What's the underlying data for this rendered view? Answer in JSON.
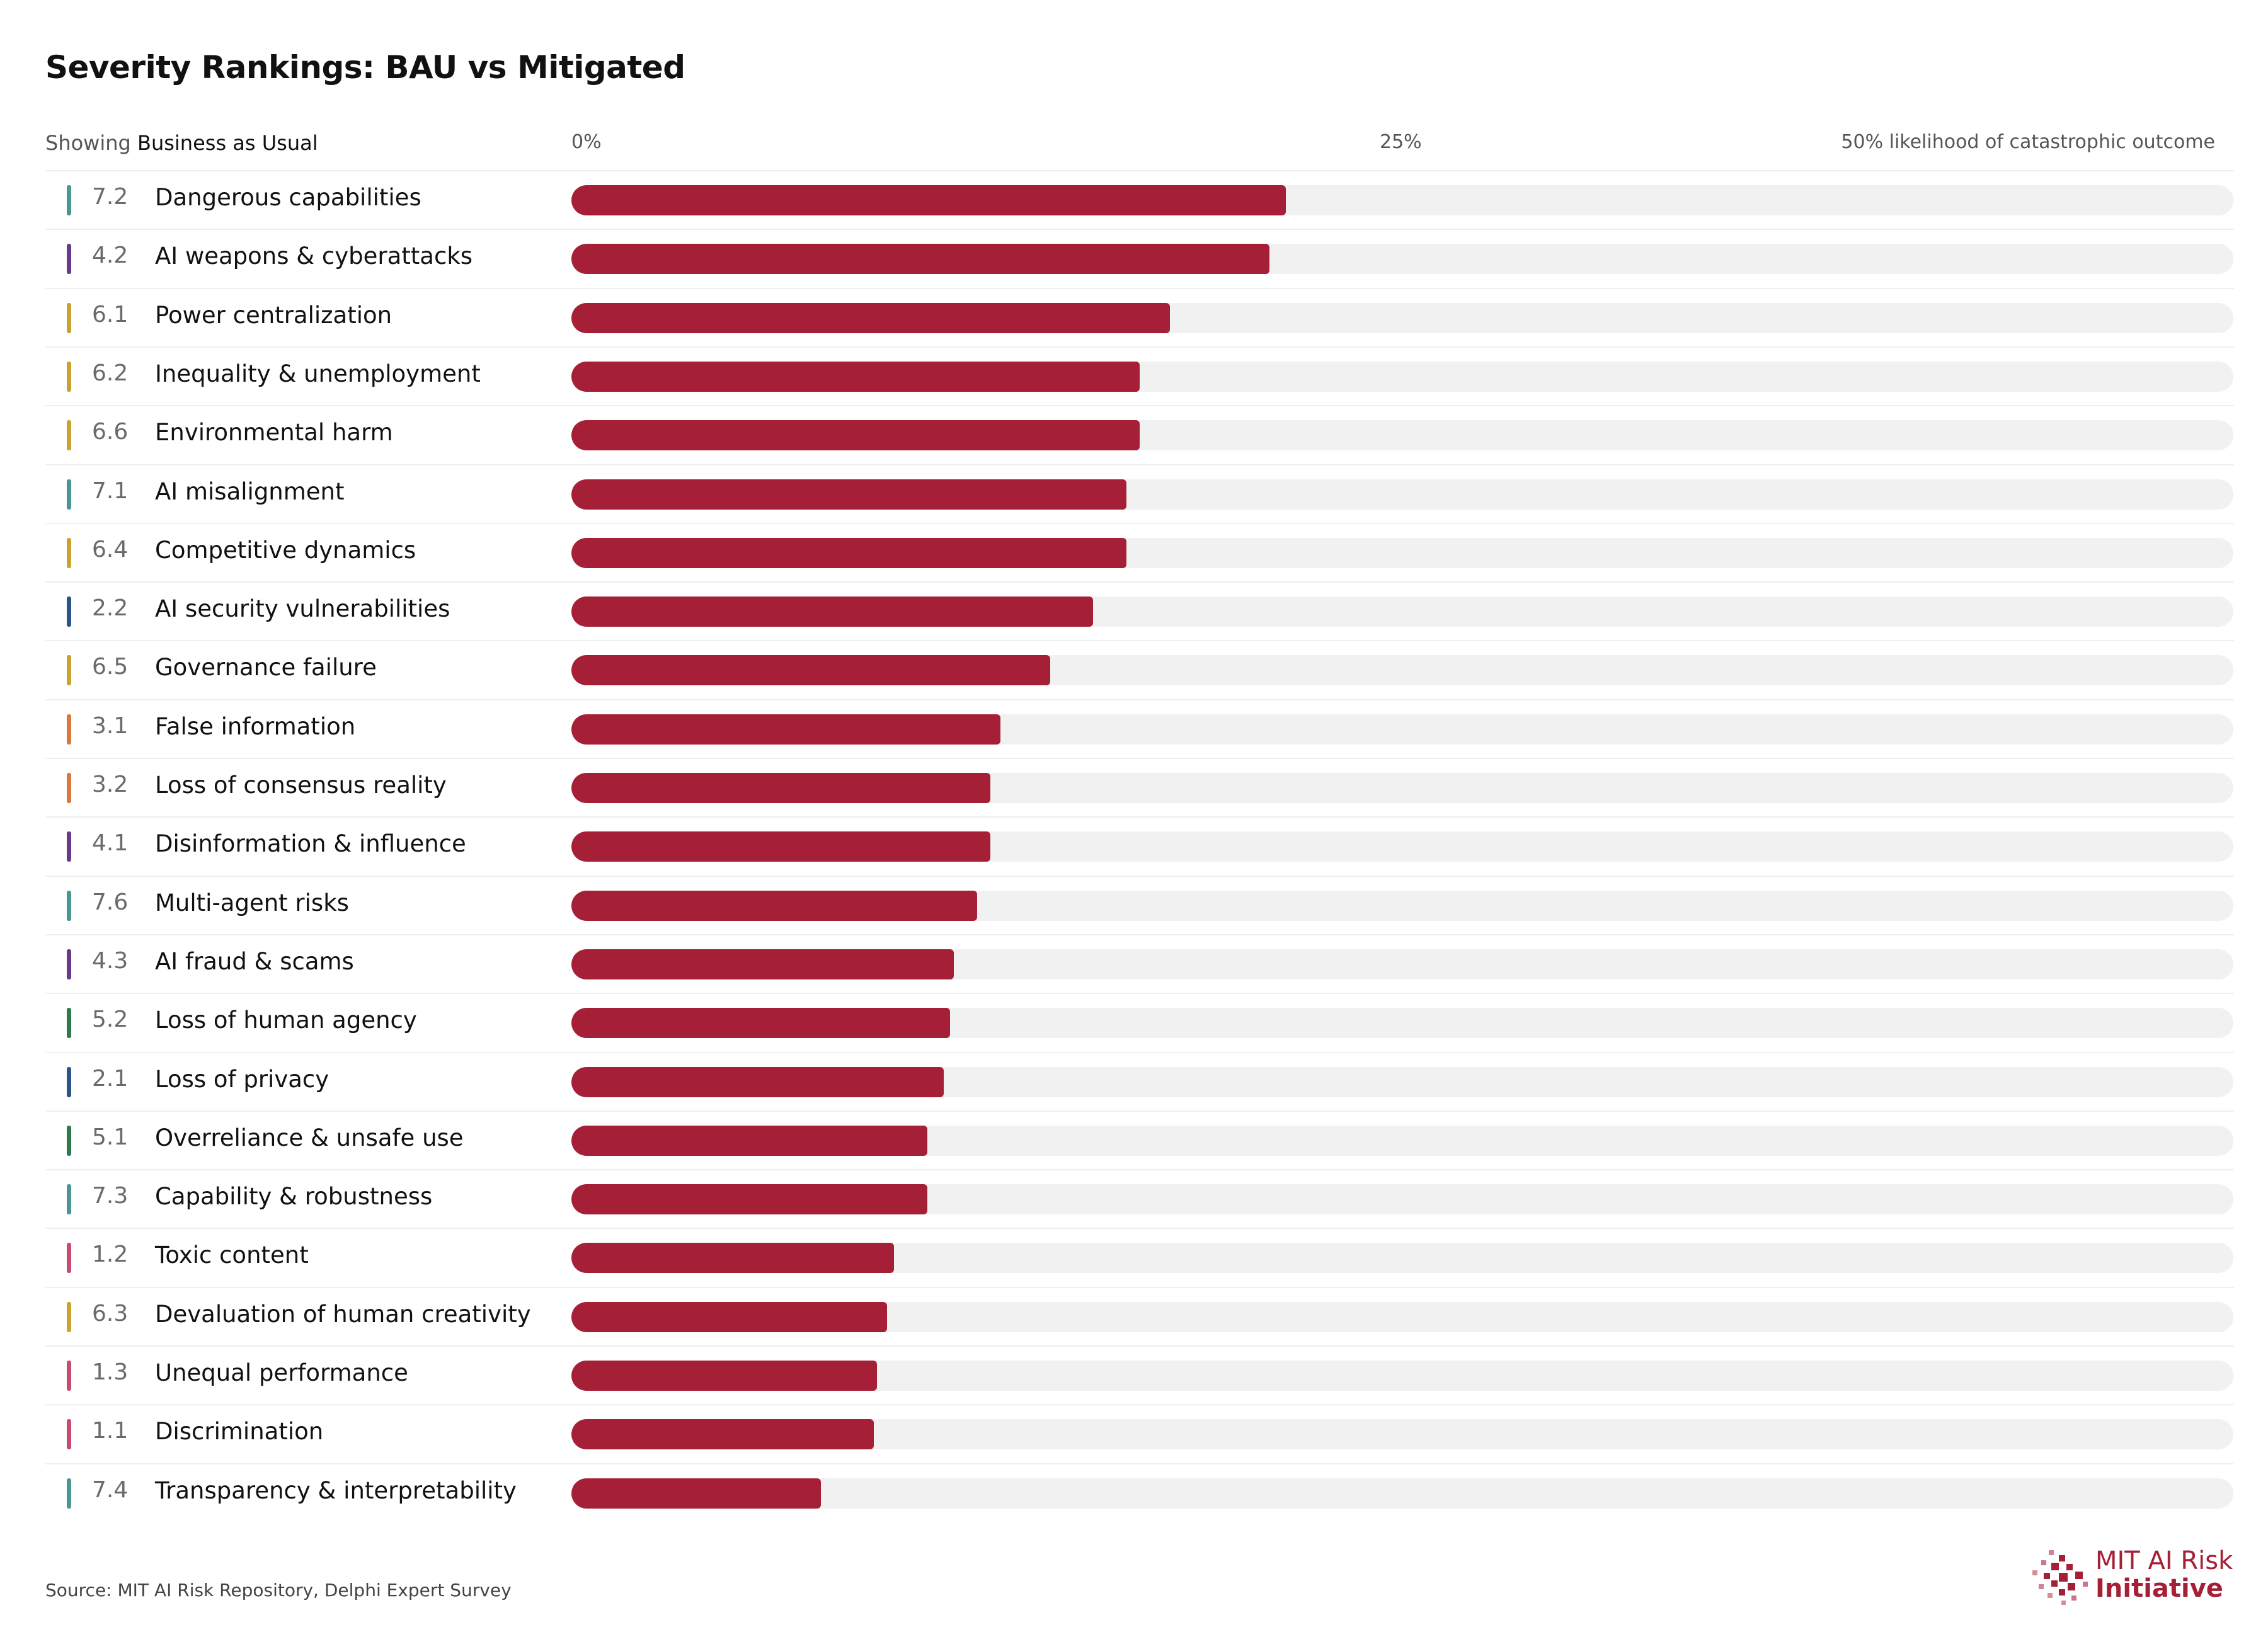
{
  "title": "Severity Rankings: BAU vs Mitigated",
  "header": {
    "showing_prefix": "Showing",
    "showing_mode": "Business as Usual"
  },
  "colors": {
    "bar": "#a52036",
    "track": "#f1f1f1",
    "category": {
      "1": "#c94b6e",
      "2": "#2d5487",
      "3": "#d7793b",
      "4": "#6a3a8a",
      "5": "#2e7a4f",
      "6": "#c9a32e",
      "7": "#4a9691"
    }
  },
  "chart_data": {
    "type": "bar",
    "orientation": "horizontal",
    "title": "Severity Rankings: BAU vs Mitigated",
    "xlim": [
      0,
      50
    ],
    "x_ticks": [
      "0%",
      "25%",
      "50% likelihood of catastrophic outcome"
    ],
    "x_tick_values": [
      0,
      25,
      50
    ],
    "grid": false,
    "categories": [
      {
        "code": "7.2",
        "label": "Dangerous capabilities",
        "group": "7",
        "value": 21.5
      },
      {
        "code": "4.2",
        "label": "AI weapons & cyberattacks",
        "group": "4",
        "value": 21.0
      },
      {
        "code": "6.1",
        "label": "Power centralization",
        "group": "6",
        "value": 18.0
      },
      {
        "code": "6.2",
        "label": "Inequality & unemployment",
        "group": "6",
        "value": 17.1
      },
      {
        "code": "6.6",
        "label": "Environmental harm",
        "group": "6",
        "value": 17.1
      },
      {
        "code": "7.1",
        "label": "AI misalignment",
        "group": "7",
        "value": 16.7
      },
      {
        "code": "6.4",
        "label": "Competitive dynamics",
        "group": "6",
        "value": 16.7
      },
      {
        "code": "2.2",
        "label": "AI security vulnerabilities",
        "group": "2",
        "value": 15.7
      },
      {
        "code": "6.5",
        "label": "Governance failure",
        "group": "6",
        "value": 14.4
      },
      {
        "code": "3.1",
        "label": "False information",
        "group": "3",
        "value": 12.9
      },
      {
        "code": "3.2",
        "label": "Loss of consensus reality",
        "group": "3",
        "value": 12.6
      },
      {
        "code": "4.1",
        "label": "Disinformation & influence",
        "group": "4",
        "value": 12.6
      },
      {
        "code": "7.6",
        "label": "Multi-agent risks",
        "group": "7",
        "value": 12.2
      },
      {
        "code": "4.3",
        "label": "AI fraud & scams",
        "group": "4",
        "value": 11.5
      },
      {
        "code": "5.2",
        "label": "Loss of human agency",
        "group": "5",
        "value": 11.4
      },
      {
        "code": "2.1",
        "label": "Loss of privacy",
        "group": "2",
        "value": 11.2
      },
      {
        "code": "5.1",
        "label": "Overreliance & unsafe use",
        "group": "5",
        "value": 10.7
      },
      {
        "code": "7.3",
        "label": "Capability & robustness",
        "group": "7",
        "value": 10.7
      },
      {
        "code": "1.2",
        "label": "Toxic content",
        "group": "1",
        "value": 9.7
      },
      {
        "code": "6.3",
        "label": "Devaluation of human creativity",
        "group": "6",
        "value": 9.5
      },
      {
        "code": "1.3",
        "label": "Unequal performance",
        "group": "1",
        "value": 9.2
      },
      {
        "code": "1.1",
        "label": "Discrimination",
        "group": "1",
        "value": 9.1
      },
      {
        "code": "7.4",
        "label": "Transparency & interpretability",
        "group": "7",
        "value": 7.5
      }
    ]
  },
  "footer": {
    "source": "Source: MIT AI Risk Repository, Delphi Expert Survey",
    "logo_line1": "MIT AI Risk",
    "logo_line2": "Initiative"
  }
}
